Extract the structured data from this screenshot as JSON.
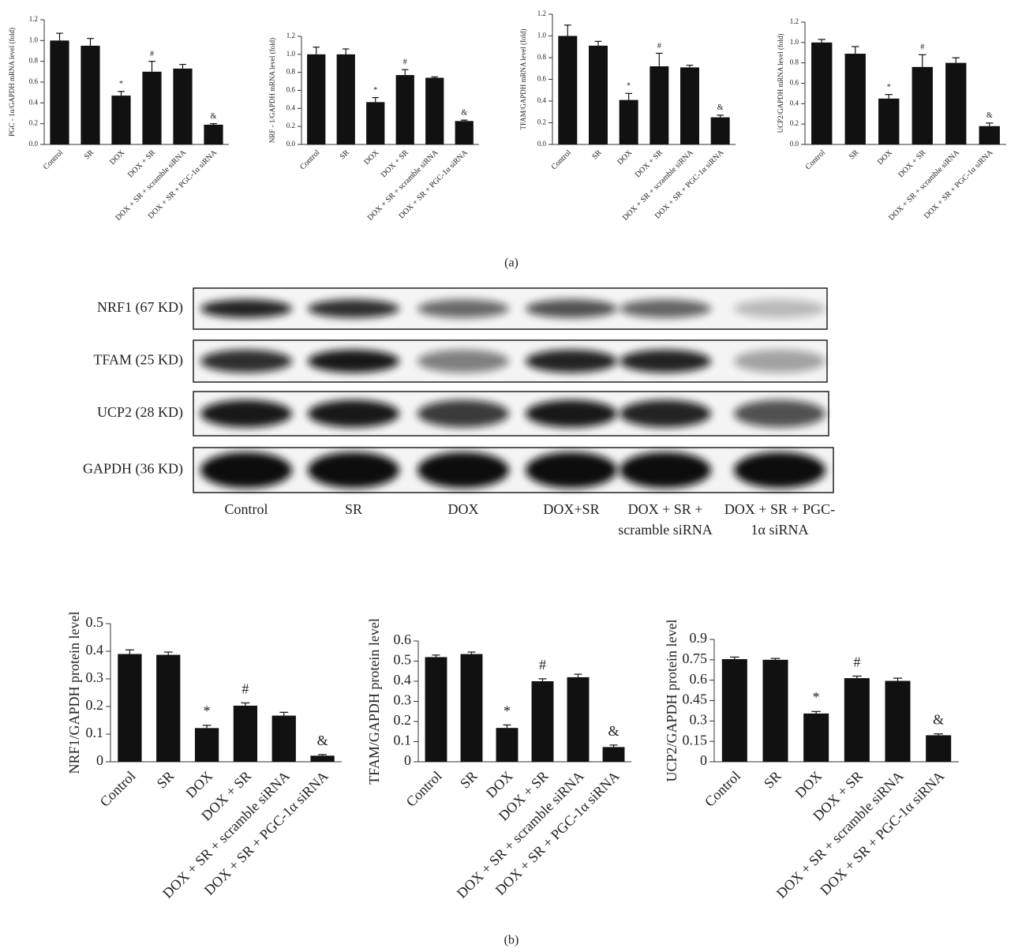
{
  "chart_data": [
    {
      "type": "bar",
      "ylabel": "PGC - 1α/GAPDH mRNA level (fold)",
      "categories": [
        "Control",
        "SR",
        "DOX",
        "DOX + SR",
        "DOX + SR + scramble siRNA",
        "DOX + SR + PGC-1α siRNA"
      ],
      "values": [
        1.0,
        0.95,
        0.47,
        0.7,
        0.73,
        0.19
      ],
      "errors": [
        0.07,
        0.07,
        0.04,
        0.1,
        0.04,
        0.01
      ],
      "annotations": [
        null,
        null,
        "*",
        "#",
        null,
        "&"
      ],
      "color": "#111111",
      "ylim": [
        0,
        1.2
      ],
      "yticks": [
        {
          "value": 0,
          "label": "0.0"
        },
        0.2,
        0.4,
        0.6,
        0.8,
        {
          "value": 1,
          "label": "1.0"
        },
        1.2
      ]
    },
    {
      "type": "bar",
      "ylabel": "NRF - 1/GAPDH mRNA level (fold)",
      "categories": [
        "Control",
        "SR",
        "DOX",
        "DOX + SR",
        "DOX + SR + scramble siRNA",
        "DOX + SR + PGC-1α siRNA"
      ],
      "values": [
        1.0,
        1.0,
        0.47,
        0.77,
        0.74,
        0.26
      ],
      "errors": [
        0.08,
        0.06,
        0.05,
        0.06,
        0.01,
        0.01
      ],
      "annotations": [
        null,
        null,
        "*",
        "#",
        null,
        "&"
      ],
      "color": "#111111",
      "ylim": [
        0,
        1.2
      ],
      "yticks": [
        {
          "value": 0,
          "label": "0.0"
        },
        0.2,
        0.4,
        0.6,
        0.8,
        {
          "value": 1,
          "label": "1.0"
        },
        1.2
      ]
    },
    {
      "type": "bar",
      "ylabel": "TFAM/GAPDH mRNA level (fold)",
      "categories": [
        "Control",
        "SR",
        "DOX",
        "DOX + SR",
        "DOX + SR + scramble siRNA",
        "DOX + SR + PGC-1α siRNA"
      ],
      "values": [
        1.0,
        0.91,
        0.41,
        0.72,
        0.71,
        0.25
      ],
      "errors": [
        0.1,
        0.04,
        0.06,
        0.12,
        0.02,
        0.02
      ],
      "annotations": [
        null,
        null,
        "*",
        "#",
        null,
        "&"
      ],
      "color": "#111111",
      "ylim": [
        0,
        1.2
      ],
      "yticks": [
        {
          "value": 0,
          "label": "0.0"
        },
        0.2,
        0.4,
        0.6,
        0.8,
        {
          "value": 1,
          "label": "1.0"
        },
        1.2
      ]
    },
    {
      "type": "bar",
      "ylabel": "UCP2/GAPDH mRNA level (fold)",
      "categories": [
        "Control",
        "SR",
        "DOX",
        "DOX + SR",
        "DOX + SR + scramble siRNA",
        "DOX + SR + PGC-1α siRNA"
      ],
      "values": [
        1.0,
        0.89,
        0.45,
        0.76,
        0.8,
        0.18
      ],
      "errors": [
        0.03,
        0.07,
        0.04,
        0.12,
        0.05,
        0.03
      ],
      "annotations": [
        null,
        null,
        "*",
        "#",
        null,
        "&"
      ],
      "color": "#111111",
      "ylim": [
        0,
        1.2
      ],
      "yticks": [
        {
          "value": 0,
          "label": "0.0"
        },
        0.2,
        0.4,
        0.6,
        0.8,
        {
          "value": 1,
          "label": "1.0"
        },
        1.2
      ]
    },
    {
      "type": "bar",
      "ylabel": "NRF1/GAPDH protein level",
      "categories": [
        "Control",
        "SR",
        "DOX",
        "DOX + SR",
        "DOX + SR + scramble siRNA",
        "DOX + SR + PGC-1α siRNA"
      ],
      "values": [
        0.39,
        0.387,
        0.122,
        0.203,
        0.167,
        0.022
      ],
      "errors": [
        0.015,
        0.01,
        0.01,
        0.01,
        0.012,
        0.004
      ],
      "annotations": [
        null,
        null,
        "*",
        "#",
        null,
        "&"
      ],
      "color": "#111111",
      "ylim": [
        0,
        0.5
      ],
      "yticks": [
        0,
        0.1,
        0.2,
        0.3,
        0.4,
        0.5
      ]
    },
    {
      "type": "bar",
      "ylabel": "TFAM/GAPDH protein level",
      "categories": [
        "Control",
        "SR",
        "DOX",
        "DOX + SR",
        "DOX + SR + scramble siRNA",
        "DOX + SR + PGC-1α siRNA"
      ],
      "values": [
        0.52,
        0.535,
        0.168,
        0.4,
        0.42,
        0.073
      ],
      "errors": [
        0.01,
        0.01,
        0.015,
        0.012,
        0.015,
        0.01
      ],
      "annotations": [
        null,
        null,
        "*",
        "#",
        null,
        "&"
      ],
      "color": "#111111",
      "ylim": [
        0,
        0.6
      ],
      "yticks": [
        0,
        0.1,
        0.2,
        0.3,
        0.4,
        0.5,
        0.6
      ]
    },
    {
      "type": "bar",
      "ylabel": "UCP2/GAPDH protein level",
      "categories": [
        "Control",
        "SR",
        "DOX",
        "DOX + SR",
        "DOX + SR + scramble siRNA",
        "DOX + SR + PGC-1α siRNA"
      ],
      "values": [
        0.755,
        0.75,
        0.355,
        0.615,
        0.595,
        0.195
      ],
      "errors": [
        0.015,
        0.01,
        0.015,
        0.015,
        0.02,
        0.01
      ],
      "annotations": [
        null,
        null,
        "*",
        "#",
        null,
        "&"
      ],
      "color": "#111111",
      "ylim": [
        0,
        0.9
      ],
      "yticks": [
        0,
        0.15,
        0.3,
        0.45,
        0.6,
        0.75,
        0.9
      ]
    }
  ],
  "blot": {
    "rows": [
      "NRF1 (67 KD)",
      "TFAM (25 KD)",
      "UCP2 (28 KD)",
      "GAPDH (36 KD)"
    ],
    "lanes": [
      [
        "Control"
      ],
      [
        "SR"
      ],
      [
        "DOX"
      ],
      [
        "DOX+SR"
      ],
      [
        "DOX + SR +",
        "scramble siRNA"
      ],
      [
        "DOX + SR + PGC-",
        "1α siRNA"
      ]
    ]
  },
  "panel_labels": [
    "(a)",
    "(b)"
  ]
}
